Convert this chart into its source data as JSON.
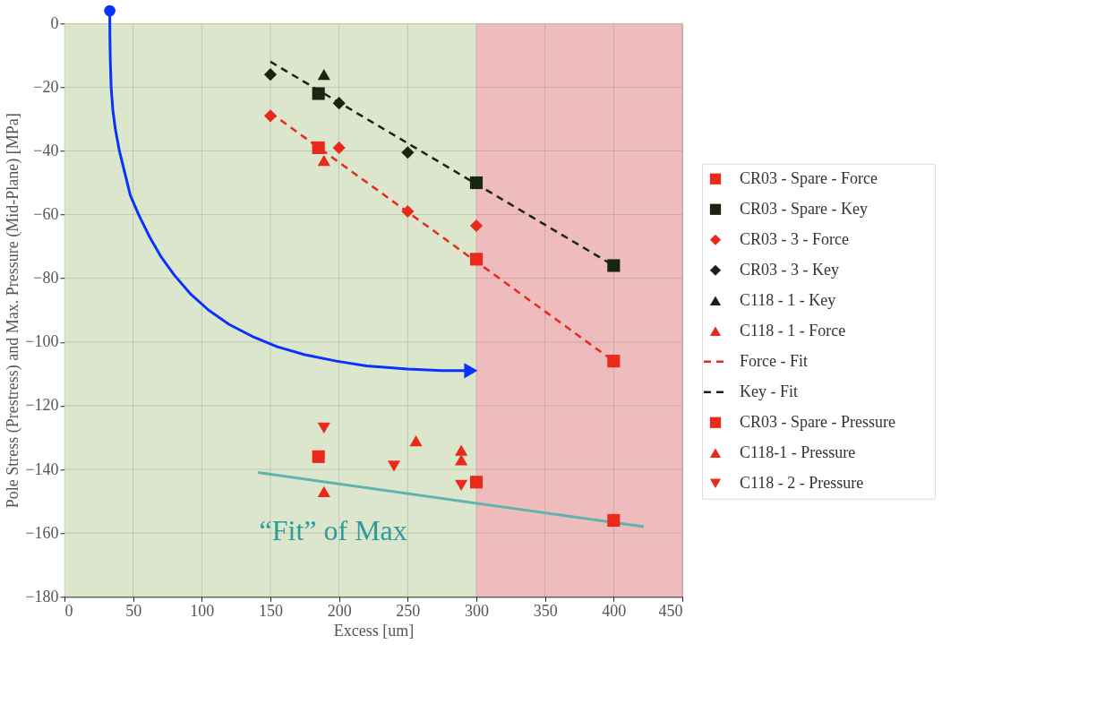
{
  "chart_data": {
    "type": "scatter",
    "xlabel": "Excess [um]",
    "ylabel": "Pole Stress (Prestress) and Max. Pressure (Mid-Plane) [MPa]",
    "xlim": [
      0,
      450
    ],
    "xticks": [
      0,
      50,
      100,
      150,
      200,
      250,
      300,
      350,
      400,
      450
    ],
    "ylim": [
      -180,
      0
    ],
    "yticks": [
      -180,
      -160,
      -140,
      -120,
      -100,
      -80,
      -60,
      -40,
      -20,
      0
    ],
    "grid": true,
    "legend": "right",
    "bands": [
      {
        "axis": "x",
        "from": 0,
        "to": 300,
        "color": "#dbe6cc"
      },
      {
        "axis": "x",
        "from": 300,
        "to": 450,
        "color": "#eebcbc"
      }
    ],
    "annotations": [
      "“Fit” of Max"
    ],
    "series": [
      {
        "name": "CR03 - Spare - Force",
        "color": "#e8291c",
        "marker": "square",
        "x": [
          185,
          300,
          400
        ],
        "values": [
          -39,
          -74,
          -106
        ]
      },
      {
        "name": "CR03 - Spare - Key",
        "color": "#1a2412",
        "marker": "square",
        "x": [
          185,
          300,
          400
        ],
        "values": [
          -22,
          -50,
          -76
        ]
      },
      {
        "name": "CR03 - 3 - Force",
        "color": "#e8291c",
        "marker": "diamond",
        "x": [
          150,
          200,
          250,
          300
        ],
        "values": [
          -29,
          -39,
          -59,
          -63.5
        ]
      },
      {
        "name": "CR03 - 3 - Key",
        "color": "#1a2412",
        "marker": "diamond",
        "x": [
          150,
          200,
          250
        ],
        "values": [
          -16,
          -25,
          -40.5
        ]
      },
      {
        "name": "C118 - 1 - Key",
        "color": "#1a2412",
        "marker": "triangle",
        "x": [
          189
        ],
        "values": [
          -16
        ]
      },
      {
        "name": "C118 - 1 - Force",
        "color": "#e8291c",
        "marker": "triangle",
        "x": [
          189
        ],
        "values": [
          -43
        ]
      },
      {
        "name": "Force - Fit",
        "type": "line",
        "color": "#e8291c",
        "line_style": "dashed",
        "marker": "none",
        "x": [
          150,
          400
        ],
        "values": [
          -28,
          -106
        ]
      },
      {
        "name": "Key - Fit",
        "type": "line",
        "color": "#1a2412",
        "line_style": "dashed",
        "marker": "none",
        "x": [
          150,
          400
        ],
        "values": [
          -12,
          -76
        ]
      },
      {
        "name": "CR03 - Spare - Pressure",
        "color": "#e8291c",
        "marker": "square",
        "x": [
          185,
          300,
          400
        ],
        "values": [
          -136,
          -144,
          -156
        ]
      },
      {
        "name": "C118-1 - Pressure",
        "color": "#e8291c",
        "marker": "triangle",
        "x": [
          189,
          256,
          289,
          289
        ],
        "values": [
          -147,
          -131,
          -134,
          -137
        ]
      },
      {
        "name": "C118 - 2 - Pressure",
        "color": "#e8291c",
        "marker": "triangle-down",
        "x": [
          189,
          240,
          289
        ],
        "values": [
          -127,
          -139,
          -145
        ]
      },
      {
        "type": "line",
        "color": "#5fb3b0",
        "line_style": "solid",
        "marker": "none",
        "x": [
          141,
          422
        ],
        "values": [
          -141,
          -158
        ]
      }
    ]
  }
}
